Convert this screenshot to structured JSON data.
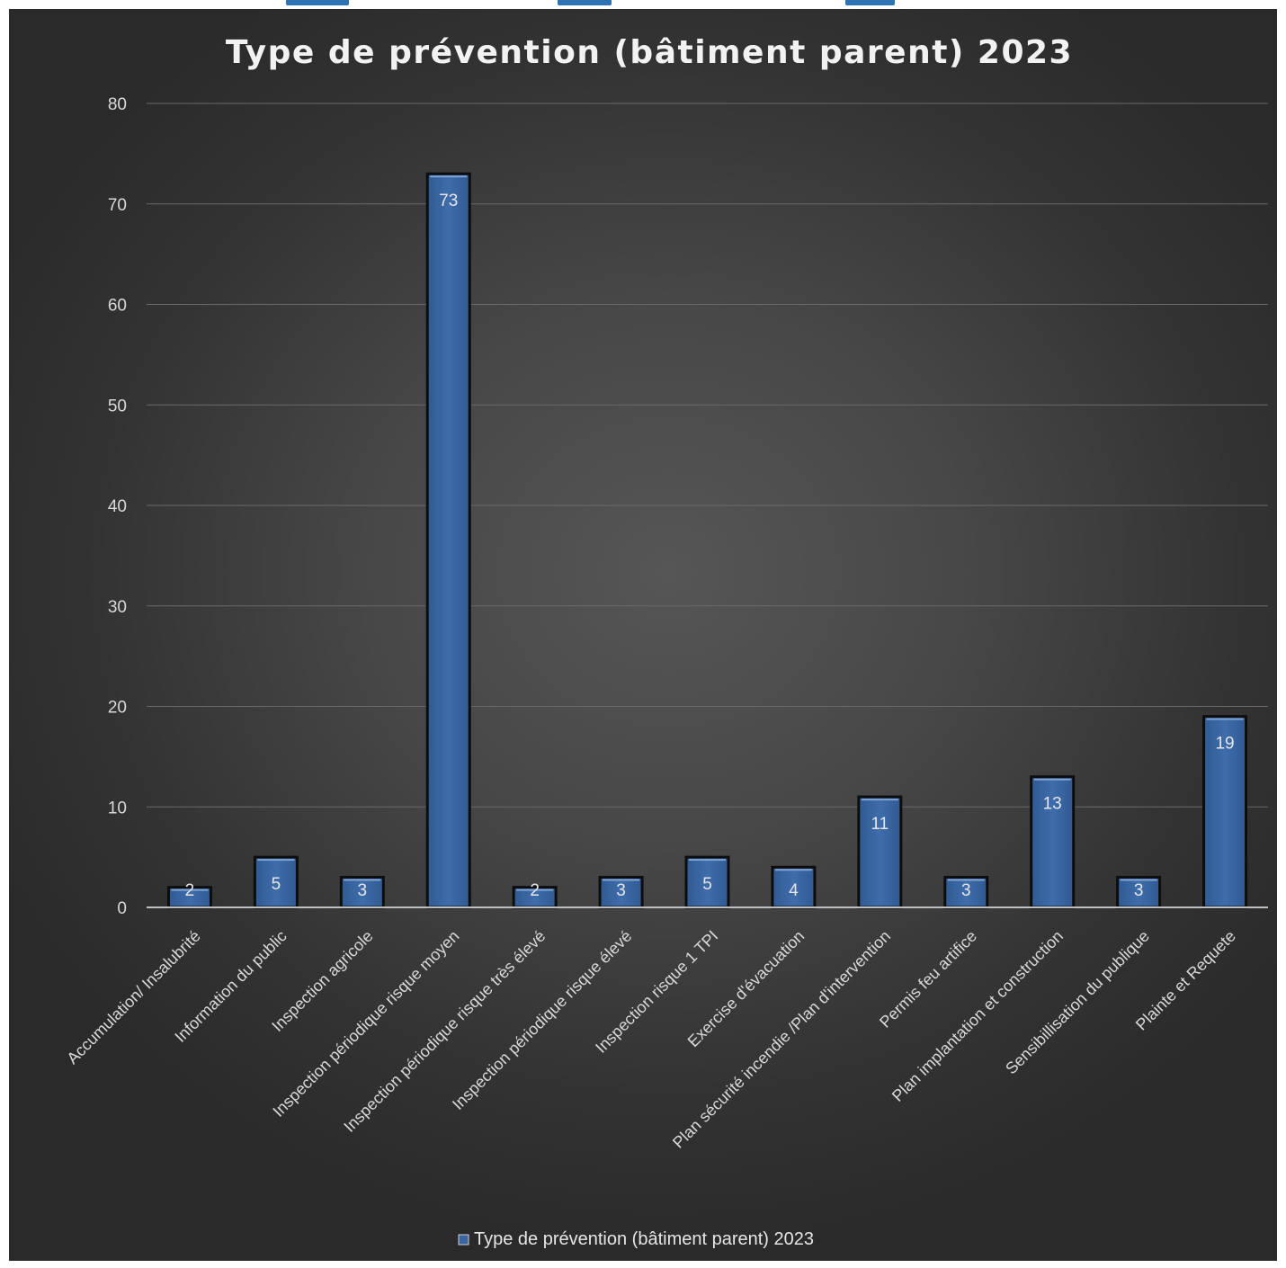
{
  "chart_data": {
    "type": "bar",
    "title": "Type de prévention (bâtiment parent) 2023",
    "xlabel": "",
    "ylabel": "",
    "ylim": [
      0,
      80
    ],
    "yticks": [
      0,
      10,
      20,
      30,
      40,
      50,
      60,
      70,
      80
    ],
    "grid": true,
    "legend_position": "bottom",
    "categories": [
      "Accumulation/ Insalubrité",
      "Information du public",
      "Inspection agricole",
      "Inspection périodique risque moyen",
      "Inspection périodique risque très élevé",
      "Inspection périodique risque élevé",
      "Inspection risque 1 TPI",
      "Exercise d'évacuation",
      "Plan sécurité incendie /Plan d'intervention",
      "Permis feu artifice",
      "Plan implantation et construction",
      "Sensibillisation du publique",
      "Plainte et Requete"
    ],
    "series": [
      {
        "name": "Type de prévention (bâtiment parent) 2023",
        "values": [
          2,
          5,
          3,
          73,
          2,
          3,
          5,
          4,
          11,
          3,
          13,
          3,
          19
        ],
        "color": "#4472c4"
      }
    ]
  },
  "colors": {
    "background": "#474747",
    "bar_fill": "#3a64a0",
    "bar_edge": "#0d0d0d",
    "gridline": "#6a6a6a",
    "text": "#d9d9d9"
  }
}
